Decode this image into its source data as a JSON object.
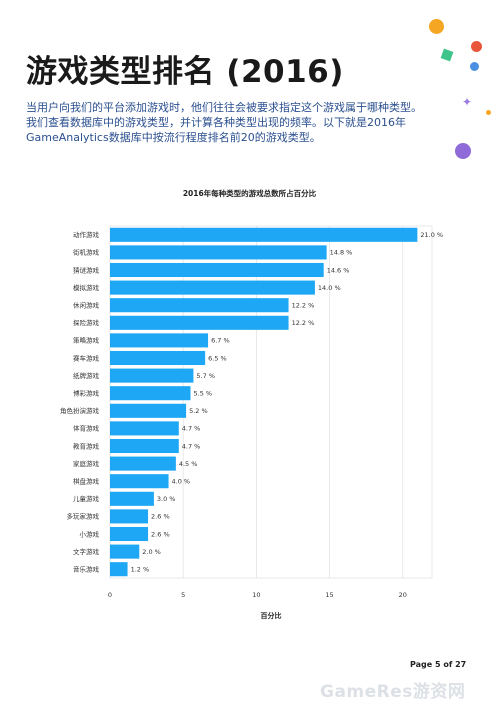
{
  "page": {
    "title": "游戏类型排名 (2016)",
    "intro_lines": [
      "当用户向我们的平台添加游戏时，他们往往会被要求指定这个游戏属于哪种类型。",
      "我们查看数据库中的游戏类型，并计算各种类型出现的频率。以下就是2016年",
      "GameAnalytics数据库中按流行程度排名前20的游戏类型。"
    ],
    "page_number": "Page 5 of 27",
    "watermark": "GameRes游资网"
  },
  "decor": {
    "colors": [
      "#f5a623",
      "#e8553b",
      "#3ec48a",
      "#8e6bd8",
      "#4a90e2"
    ]
  },
  "chart_data": {
    "type": "bar",
    "orientation": "horizontal",
    "title": "2016年每种类型的游戏总数所占百分比",
    "xlabel": "百分比",
    "ylabel": "",
    "xlim": [
      0,
      22
    ],
    "xticks": [
      0,
      5,
      10,
      15,
      20
    ],
    "grid": true,
    "bar_color": "#1ea7f5",
    "categories": [
      "动作游戏",
      "街机游戏",
      "猜谜游戏",
      "模拟游戏",
      "休闲游戏",
      "探险游戏",
      "策略游戏",
      "赛车游戏",
      "纸牌游戏",
      "博彩游戏",
      "角色扮演游戏",
      "体育游戏",
      "教育游戏",
      "家庭游戏",
      "棋盘游戏",
      "儿童游戏",
      "多玩家游戏",
      "小游戏",
      "文字游戏",
      "音乐游戏"
    ],
    "values": [
      21.0,
      14.8,
      14.6,
      14.0,
      12.2,
      12.2,
      6.7,
      6.5,
      5.7,
      5.5,
      5.2,
      4.7,
      4.7,
      4.5,
      4.0,
      3.0,
      2.6,
      2.6,
      2.0,
      1.2
    ],
    "data_labels": [
      "21.0 %",
      "14.8 %",
      "14.6 %",
      "14.0 %",
      "12.2 %",
      "12.2 %",
      "6.7 %",
      "6.5 %",
      "5.7 %",
      "5.5 %",
      "5.2 %",
      "4.7 %",
      "4.7 %",
      "4.5 %",
      "4.0 %",
      "3.0 %",
      "2.6 %",
      "2.6 %",
      "2.0 %",
      "1.2 %"
    ]
  }
}
